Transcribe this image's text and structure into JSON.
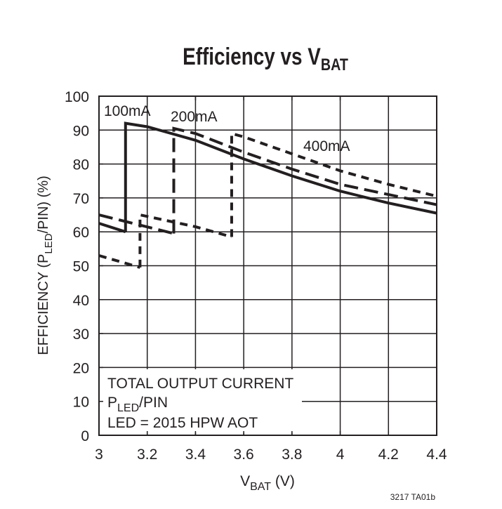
{
  "chart_data": {
    "type": "line",
    "title": {
      "main": "Efficiency vs V",
      "sub": "BAT"
    },
    "xlabel": {
      "main": "V",
      "sub": "BAT",
      "rest": " (V)"
    },
    "ylabel": {
      "pre": "EFFICIENCY (P",
      "sub": "LED",
      "rest": "/PIN) (%)"
    },
    "xlim": [
      3,
      4.4
    ],
    "ylim": [
      0,
      100
    ],
    "xticks": [
      "3",
      "3.2",
      "3.4",
      "3.6",
      "3.8",
      "4",
      "4.2",
      "4.4"
    ],
    "yticks": [
      "0",
      "10",
      "20",
      "30",
      "40",
      "50",
      "60",
      "70",
      "80",
      "90",
      "100"
    ],
    "grid": true,
    "series": [
      {
        "name": "100mA",
        "style": "solid",
        "segments": [
          [
            [
              3.0,
              62.5
            ],
            [
              3.11,
              60.0
            ]
          ],
          [
            [
              3.11,
              60.0
            ],
            [
              3.11,
              92.0
            ],
            [
              3.2,
              91.0
            ],
            [
              3.4,
              87.0
            ],
            [
              3.6,
              81.5
            ],
            [
              3.8,
              76.5
            ],
            [
              4.0,
              72.0
            ],
            [
              4.2,
              68.5
            ],
            [
              4.4,
              65.5
            ]
          ]
        ]
      },
      {
        "name": "200mA",
        "style": "long-dash",
        "segments": [
          [
            [
              3.0,
              65.0
            ],
            [
              3.31,
              59.5
            ]
          ],
          [
            [
              3.31,
              59.5
            ],
            [
              3.31,
              90.5
            ],
            [
              3.4,
              89.0
            ],
            [
              3.6,
              83.5
            ],
            [
              3.8,
              78.5
            ],
            [
              4.0,
              74.0
            ],
            [
              4.2,
              71.0
            ],
            [
              4.4,
              68.0
            ]
          ]
        ]
      },
      {
        "name": "400mA",
        "style": "short-dash",
        "segments": [
          [
            [
              3.0,
              53.0
            ],
            [
              3.17,
              49.5
            ]
          ],
          [
            [
              3.17,
              49.5
            ],
            [
              3.17,
              65.0
            ],
            [
              3.4,
              61.5
            ],
            [
              3.55,
              58.5
            ]
          ],
          [
            [
              3.55,
              58.5
            ],
            [
              3.55,
              89.0
            ],
            [
              3.6,
              88.0
            ],
            [
              3.8,
              83.0
            ],
            [
              4.0,
              78.0
            ],
            [
              4.2,
              74.0
            ],
            [
              4.4,
              70.5
            ]
          ]
        ]
      }
    ],
    "annotations": {
      "line1": "TOTAL OUTPUT CURRENT",
      "line2": {
        "pre": "P",
        "sub": "LED",
        "rest": "/PIN"
      },
      "line3": "LED = 2015 HPW AOT"
    },
    "footnote": "3217 TA01b"
  }
}
